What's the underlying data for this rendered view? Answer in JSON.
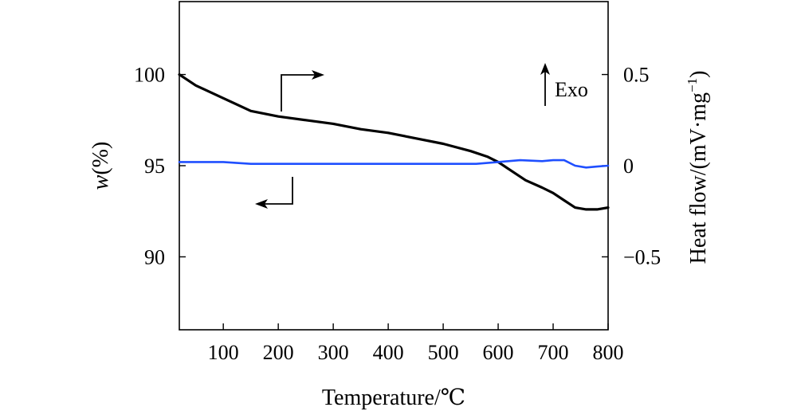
{
  "chart_data": {
    "type": "line",
    "x_axis": {
      "label": "Temperature/℃",
      "range": [
        20,
        800
      ],
      "ticks": [
        100,
        200,
        300,
        400,
        500,
        600,
        700,
        800
      ],
      "tick_labels": [
        "100",
        "200",
        "300",
        "400",
        "500",
        "600",
        "700",
        "800"
      ]
    },
    "y_axis_left": {
      "label_italic": "w",
      "label_rest": "(%)",
      "range": [
        86,
        104
      ],
      "ticks": [
        90,
        95,
        100
      ],
      "tick_labels": [
        "90",
        "95",
        "100"
      ]
    },
    "y_axis_right": {
      "label_main": "Heat flow/(mV·mg",
      "label_sup": "−1",
      "label_end": ")",
      "range": [
        -0.9,
        0.9
      ],
      "ticks": [
        -0.5,
        0,
        0.5
      ],
      "tick_labels": [
        "−0.5",
        "0",
        "0.5"
      ]
    },
    "series": [
      {
        "name": "w",
        "axis": "left",
        "color": "#000000",
        "x": [
          20,
          50,
          100,
          150,
          200,
          250,
          300,
          350,
          400,
          450,
          500,
          550,
          580,
          600,
          620,
          650,
          680,
          700,
          720,
          740,
          760,
          780,
          800
        ],
        "y": [
          100.0,
          99.4,
          98.7,
          98.0,
          97.7,
          97.5,
          97.3,
          97.0,
          96.8,
          96.5,
          96.2,
          95.8,
          95.5,
          95.2,
          94.8,
          94.2,
          93.8,
          93.5,
          93.1,
          92.7,
          92.6,
          92.6,
          92.7
        ]
      },
      {
        "name": "Heat flow",
        "axis": "right",
        "color": "#1f4fff",
        "x": [
          20,
          50,
          100,
          150,
          200,
          300,
          400,
          500,
          560,
          600,
          640,
          680,
          700,
          720,
          740,
          760,
          780,
          800
        ],
        "y": [
          0.02,
          0.02,
          0.02,
          0.01,
          0.01,
          0.01,
          0.01,
          0.01,
          0.01,
          0.02,
          0.03,
          0.025,
          0.03,
          0.03,
          0.0,
          -0.01,
          -0.005,
          0.0
        ]
      }
    ],
    "annotations": {
      "exo_label": "Exo"
    }
  }
}
